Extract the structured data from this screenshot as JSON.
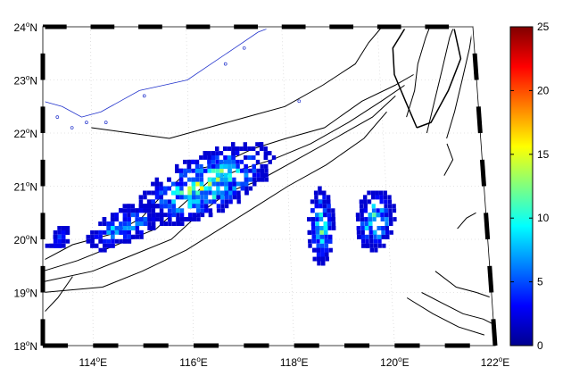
{
  "map": {
    "lat_labels": [
      {
        "deg": "24",
        "suffix": "N"
      },
      {
        "deg": "23",
        "suffix": "N"
      },
      {
        "deg": "22",
        "suffix": "N"
      },
      {
        "deg": "21",
        "suffix": "N"
      },
      {
        "deg": "20",
        "suffix": "N"
      },
      {
        "deg": "19",
        "suffix": "N"
      },
      {
        "deg": "18",
        "suffix": "N"
      }
    ],
    "lon_labels": [
      {
        "deg": "114",
        "suffix": "E"
      },
      {
        "deg": "116",
        "suffix": "E"
      },
      {
        "deg": "118",
        "suffix": "E"
      },
      {
        "deg": "120",
        "suffix": "E"
      },
      {
        "deg": "122",
        "suffix": "E"
      }
    ],
    "extent": {
      "lon": [
        113,
        122
      ],
      "lat": [
        18,
        24
      ]
    },
    "colorbar": {
      "ticks": [
        "25",
        "20",
        "15",
        "10",
        "5",
        "0"
      ],
      "range": [
        0,
        25
      ],
      "colormap": "jet"
    },
    "colors": {
      "coastline": "#2233cc",
      "isobath": "#000000",
      "frame_dark": "#000000",
      "frame_light": "#ffffff",
      "graticule": "#cccccc"
    }
  }
}
